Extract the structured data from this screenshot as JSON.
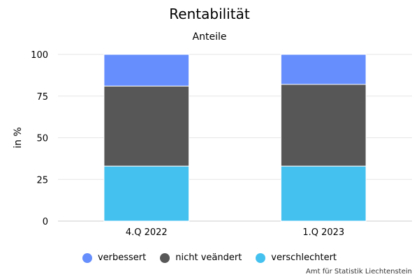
{
  "chart_data": {
    "type": "bar",
    "stacked": true,
    "title": "Rentabilität",
    "subtitle": "Anteile",
    "ylabel": "in %",
    "xlabel": "",
    "ylim": [
      0,
      100
    ],
    "yticks": [
      0,
      25,
      50,
      75,
      100
    ],
    "grid": true,
    "legend_position": "bottom",
    "categories": [
      "4.Q 2022",
      "1.Q 2023"
    ],
    "series": [
      {
        "name": "verschlechtert",
        "color": "#44c1ef",
        "values": [
          33,
          33
        ]
      },
      {
        "name": "nicht veändert",
        "color": "#575757",
        "values": [
          48,
          49
        ]
      },
      {
        "name": "verbessert",
        "color": "#668efc",
        "values": [
          19,
          18
        ]
      }
    ],
    "legend_order": [
      "verbessert",
      "nicht veändert",
      "verschlechtert"
    ],
    "credits": "Amt für Statistik Liechtenstein"
  }
}
